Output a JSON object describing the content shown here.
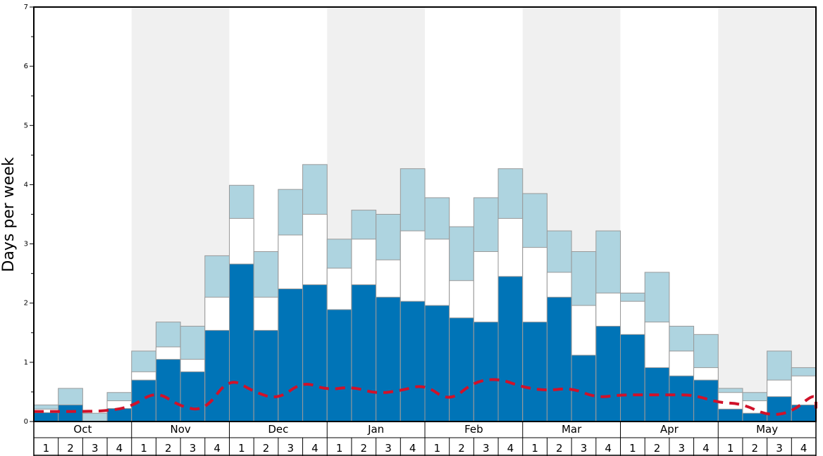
{
  "chart_data": {
    "type": "bar",
    "ylabel": "Days per week",
    "ylim": [
      0,
      7
    ],
    "y_ticks": [
      "0",
      "1",
      "2",
      "3",
      "4",
      "5",
      "6",
      "7"
    ],
    "months": [
      "Oct",
      "Nov",
      "Dec",
      "Jan",
      "Feb",
      "Mar",
      "Apr",
      "May"
    ],
    "weeks": [
      "1",
      "2",
      "3",
      "4"
    ],
    "colors": {
      "lower": "#0074b7",
      "middle": "#ffffff",
      "upper": "#aed4e0",
      "trend": "#d0122a",
      "band": "#f0f0f0"
    },
    "series": [
      {
        "values": [
          0.15,
          0.28,
          0.0,
          0.22,
          0.7,
          1.05,
          0.84,
          1.54,
          2.66,
          1.54,
          2.24,
          2.31,
          1.89,
          2.31,
          2.1,
          2.03,
          1.96,
          1.75,
          1.68,
          2.45,
          1.68,
          2.1,
          1.12,
          1.61,
          1.47,
          0.91,
          0.77,
          0.7,
          0.21,
          0.14,
          0.42,
          0.28
        ]
      },
      {
        "values": [
          0.21,
          0.28,
          0.0,
          0.35,
          0.84,
          1.26,
          1.05,
          2.1,
          3.43,
          2.1,
          3.15,
          3.5,
          2.59,
          3.08,
          2.73,
          3.22,
          3.08,
          2.38,
          2.87,
          3.43,
          2.94,
          2.52,
          1.96,
          2.17,
          2.03,
          1.68,
          1.19,
          0.91,
          0.49,
          0.35,
          0.7,
          0.77
        ]
      },
      {
        "values": [
          0.28,
          0.56,
          0.14,
          0.49,
          1.19,
          1.68,
          1.61,
          2.8,
          3.99,
          2.87,
          3.92,
          4.34,
          3.08,
          3.57,
          3.5,
          4.27,
          3.78,
          3.29,
          3.78,
          4.27,
          3.85,
          3.22,
          2.87,
          3.22,
          2.17,
          2.52,
          1.61,
          1.47,
          0.56,
          0.49,
          1.19,
          0.91
        ]
      },
      {
        "values": [
          0.17,
          0.17,
          0.18,
          0.25,
          0.52,
          0.25,
          0.18,
          0.75,
          0.5,
          0.37,
          0.68,
          0.53,
          0.59,
          0.47,
          0.52,
          0.63,
          0.33,
          0.67,
          0.73,
          0.58,
          0.52,
          0.57,
          0.4,
          0.45,
          0.45,
          0.45,
          0.45,
          0.32,
          0.3,
          0.1,
          0.15,
          0.5
        ]
      }
    ],
    "trend_end": 0.22
  }
}
